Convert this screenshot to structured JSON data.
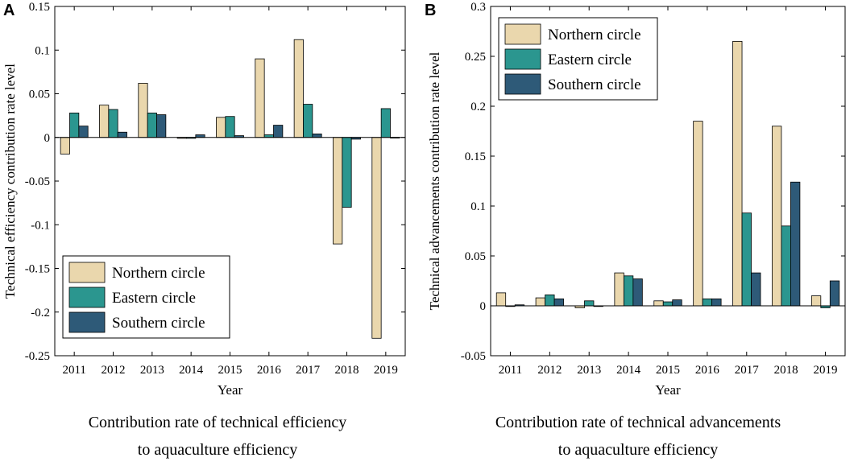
{
  "colors": {
    "northern": "#ead7ad",
    "eastern": "#2b968f",
    "southern": "#2e5a78"
  },
  "captions": {
    "a_line1": "Contribution rate of technical efficiency",
    "a_line2": "to aquaculture efficiency",
    "b_line1": "Contribution rate of technical advancements",
    "b_line2": "to aquaculture efficiency"
  },
  "chart_data": [
    {
      "panel": "A",
      "type": "bar",
      "title": "",
      "xlabel": "Year",
      "ylabel": "Technical efficiency contribution rate level",
      "categories": [
        "2011",
        "2012",
        "2013",
        "2014",
        "2015",
        "2016",
        "2017",
        "2018",
        "2019"
      ],
      "ylim": [
        -0.25,
        0.15
      ],
      "yticks": [
        -0.25,
        -0.2,
        -0.15,
        -0.1,
        -0.05,
        0,
        0.05,
        0.1,
        0.15
      ],
      "ytick_labels": [
        "-0.25",
        "-0.2",
        "-0.15",
        "-0.1",
        "-0.05",
        "0",
        "0.05",
        "0.1",
        "0.15"
      ],
      "legend_position": "bottom-left",
      "series": [
        {
          "name": "Northern circle",
          "color_key": "northern",
          "values": [
            -0.019,
            0.037,
            0.062,
            -0.001,
            0.023,
            0.09,
            0.112,
            -0.122,
            -0.23
          ]
        },
        {
          "name": "Eastern circle",
          "color_key": "eastern",
          "values": [
            0.028,
            0.032,
            0.028,
            -0.001,
            0.024,
            0.003,
            0.038,
            -0.08,
            0.033
          ]
        },
        {
          "name": "Southern circle",
          "color_key": "southern",
          "values": [
            0.013,
            0.006,
            0.026,
            0.003,
            0.002,
            0.014,
            0.004,
            -0.002,
            0.0
          ]
        }
      ]
    },
    {
      "panel": "B",
      "type": "bar",
      "title": "",
      "xlabel": "Year",
      "ylabel": "Technical advancements contribution rate level",
      "categories": [
        "2011",
        "2012",
        "2013",
        "2014",
        "2015",
        "2016",
        "2017",
        "2018",
        "2019"
      ],
      "ylim": [
        -0.05,
        0.3
      ],
      "yticks": [
        -0.05,
        0,
        0.05,
        0.1,
        0.15,
        0.2,
        0.25,
        0.3
      ],
      "ytick_labels": [
        "-0.05",
        "0",
        "0.05",
        "0.1",
        "0.15",
        "0.2",
        "0.25",
        "0.3"
      ],
      "legend_position": "top-left",
      "series": [
        {
          "name": "Northern circle",
          "color_key": "northern",
          "values": [
            0.013,
            0.008,
            -0.002,
            0.033,
            0.005,
            0.185,
            0.265,
            0.18,
            0.01
          ]
        },
        {
          "name": "Eastern circle",
          "color_key": "eastern",
          "values": [
            0.0,
            0.011,
            0.005,
            0.03,
            0.004,
            0.007,
            0.093,
            0.08,
            -0.002
          ]
        },
        {
          "name": "Southern circle",
          "color_key": "southern",
          "values": [
            0.001,
            0.007,
            0.0,
            0.027,
            0.006,
            0.007,
            0.033,
            0.124,
            0.025
          ]
        }
      ]
    }
  ]
}
